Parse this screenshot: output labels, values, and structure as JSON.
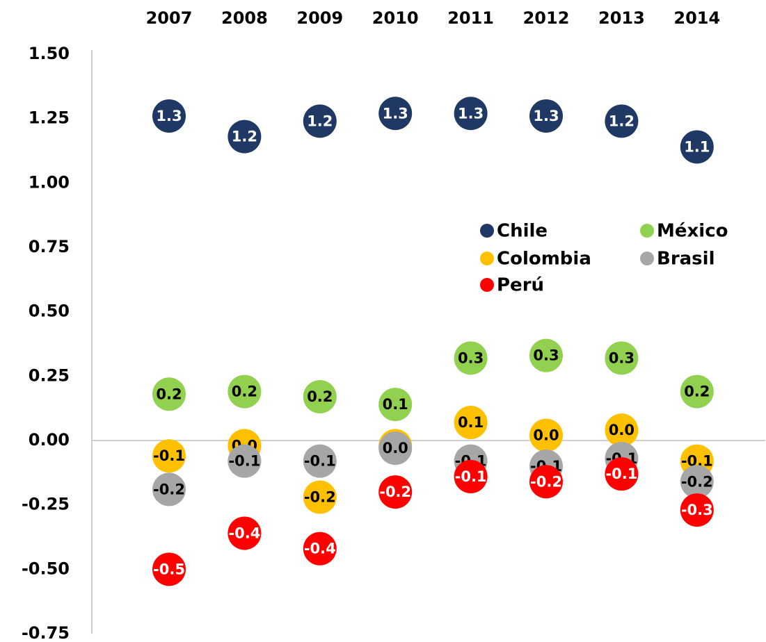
{
  "chart_data": {
    "type": "dot",
    "categories": [
      "2007",
      "2008",
      "2009",
      "2010",
      "2011",
      "2012",
      "2013",
      "2014"
    ],
    "ylim": [
      -0.75,
      1.5
    ],
    "yticks": [
      {
        "value": 1.5,
        "label": "1.50"
      },
      {
        "value": 1.25,
        "label": "1.25"
      },
      {
        "value": 1.0,
        "label": "1.00"
      },
      {
        "value": 0.75,
        "label": "0.75"
      },
      {
        "value": 0.5,
        "label": "0.50"
      },
      {
        "value": 0.25,
        "label": "0.25"
      },
      {
        "value": 0.0,
        "label": "0.00"
      },
      {
        "value": -0.25,
        "label": "-0.25"
      },
      {
        "value": -0.5,
        "label": "-0.50"
      },
      {
        "value": -0.75,
        "label": "-0.75"
      }
    ],
    "legend": "center-right",
    "series": [
      {
        "name": "Chile",
        "color": "#1f3864",
        "label_color": "#ffffff",
        "values": [
          1.26,
          1.18,
          1.24,
          1.27,
          1.27,
          1.26,
          1.24,
          1.14
        ],
        "value_labels": [
          "1.3",
          "1.2",
          "1.2",
          "1.3",
          "1.3",
          "1.3",
          "1.2",
          "1.1"
        ]
      },
      {
        "name": "México",
        "color": "#92d050",
        "label_color": "#000000",
        "values": [
          0.18,
          0.19,
          0.17,
          0.14,
          0.32,
          0.33,
          0.32,
          0.19
        ],
        "value_labels": [
          "0.2",
          "0.2",
          "0.2",
          "0.1",
          "0.3",
          "0.3",
          "0.3",
          "0.2"
        ]
      },
      {
        "name": "Colombia",
        "color": "#ffc000",
        "label_color": "#000000",
        "values": [
          -0.06,
          -0.02,
          -0.22,
          -0.02,
          0.07,
          0.02,
          0.04,
          -0.08
        ],
        "value_labels": [
          "-0.1",
          "0.0",
          "-0.2",
          "0.0",
          "0.1",
          "0.0",
          "0.0",
          "-0.1"
        ]
      },
      {
        "name": "Brasil",
        "color": "#a6a6a6",
        "label_color": "#000000",
        "values": [
          -0.19,
          -0.08,
          -0.08,
          -0.03,
          -0.08,
          -0.1,
          -0.07,
          -0.16
        ],
        "value_labels": [
          "-0.2",
          "-0.1",
          "-0.1",
          "0.0",
          "-0.1",
          "-0.1",
          "-0.1",
          "-0.2"
        ]
      },
      {
        "name": "Perú",
        "color": "#ff0000",
        "label_color": "#ffffff",
        "values": [
          -0.5,
          -0.36,
          -0.42,
          -0.2,
          -0.14,
          -0.16,
          -0.13,
          -0.27
        ],
        "value_labels": [
          "-0.5",
          "-0.4",
          "-0.4",
          "-0.2",
          "-0.1",
          "-0.2",
          "-0.1",
          "-0.3"
        ]
      }
    ]
  }
}
